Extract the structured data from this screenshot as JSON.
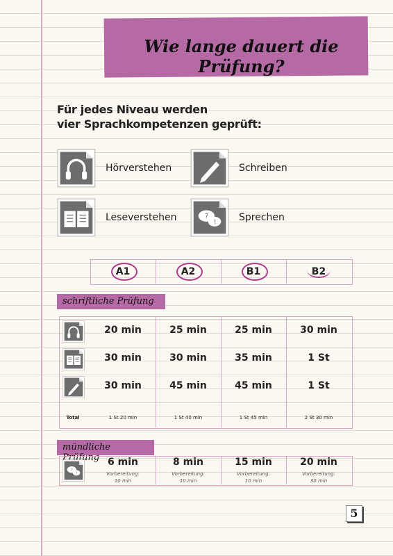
{
  "header": {
    "title": "Wie lange dauert die Prüfung?"
  },
  "intro": {
    "lines": [
      "Für jedes Niveau werden",
      "vier Sprachkompetenzen geprüft:"
    ]
  },
  "skills": [
    {
      "label": "Hörverstehen"
    },
    {
      "label": "Schreiben"
    },
    {
      "label": "Leseverstehen"
    },
    {
      "label": "Sprechen"
    }
  ],
  "levels": [
    "A1",
    "A2",
    "B1",
    "B2"
  ],
  "written": {
    "title": "schriftliche Prüfung",
    "rows": [
      [
        "20 min",
        "25 min",
        "25 min",
        "30 min"
      ],
      [
        "30 min",
        "30 min",
        "35 min",
        "1 St"
      ],
      [
        "30 min",
        "45 min",
        "45 min",
        "1 St"
      ]
    ],
    "total_label": "Total",
    "totals": [
      "1 St 20 min",
      "1 St 40 min",
      "1 St 45 min",
      "2 St 30 min"
    ]
  },
  "oral": {
    "title": "mündliche Prüfung",
    "times": [
      "6 min",
      "8 min",
      "15 min",
      "20 min"
    ],
    "prep_label": "Vorbereitung:",
    "prep": [
      "10 min",
      "10 min",
      "10 min",
      "30 min"
    ]
  },
  "page_number": "5"
}
